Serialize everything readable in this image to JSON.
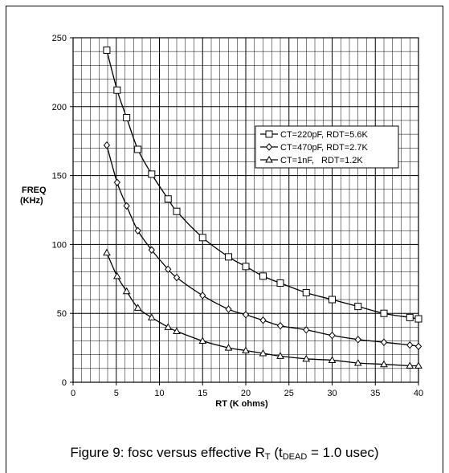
{
  "chart_data": {
    "type": "line",
    "xlabel": "RT (K ohms)",
    "ylabel_lines": [
      "FREQ",
      "(KHz)"
    ],
    "xlim": [
      0,
      40
    ],
    "ylim": [
      0,
      250
    ],
    "x_ticks": [
      0,
      5,
      10,
      15,
      20,
      25,
      30,
      35,
      40
    ],
    "y_ticks": [
      0,
      50,
      100,
      150,
      200,
      250
    ],
    "x_minor_step": 1,
    "y_minor_step": 10,
    "grid": true,
    "legend_position": "right-middle",
    "series": [
      {
        "name": "CT=220pF, RDT=5.6K",
        "marker": "square",
        "x": [
          3.9,
          5.1,
          6.2,
          7.5,
          9.1,
          11,
          12,
          15,
          18,
          20,
          22,
          24,
          27,
          30,
          33,
          36,
          39,
          40
        ],
        "y": [
          241,
          212,
          192,
          169,
          151,
          133,
          124,
          105,
          91,
          84,
          77,
          72,
          65,
          60,
          55,
          50,
          47,
          46
        ]
      },
      {
        "name": "CT=470pF, RDT=2.7K",
        "marker": "diamond",
        "x": [
          3.9,
          5.1,
          6.2,
          7.5,
          9.1,
          11,
          12,
          15,
          18,
          20,
          22,
          24,
          27,
          30,
          33,
          36,
          39,
          40
        ],
        "y": [
          172,
          145,
          128,
          110,
          96,
          82,
          76,
          63,
          53,
          49,
          45,
          41,
          38,
          34,
          31,
          29,
          27,
          26
        ]
      },
      {
        "name": "CT=1nF,   RDT=1.2K",
        "marker": "triangle",
        "x": [
          3.9,
          5.1,
          6.2,
          7.5,
          9.1,
          11,
          12,
          15,
          18,
          20,
          22,
          24,
          27,
          30,
          33,
          36,
          39,
          40
        ],
        "y": [
          94,
          77,
          66,
          54,
          47,
          40,
          37,
          30,
          25,
          23,
          21,
          19,
          17,
          16,
          14,
          13,
          12,
          12
        ]
      }
    ]
  },
  "caption": {
    "prefix": "Figure 9: fosc versus effective R",
    "sub1": "T",
    "middle": " (t",
    "sub2": "DEAD",
    "suffix": " = 1.0 usec)"
  }
}
